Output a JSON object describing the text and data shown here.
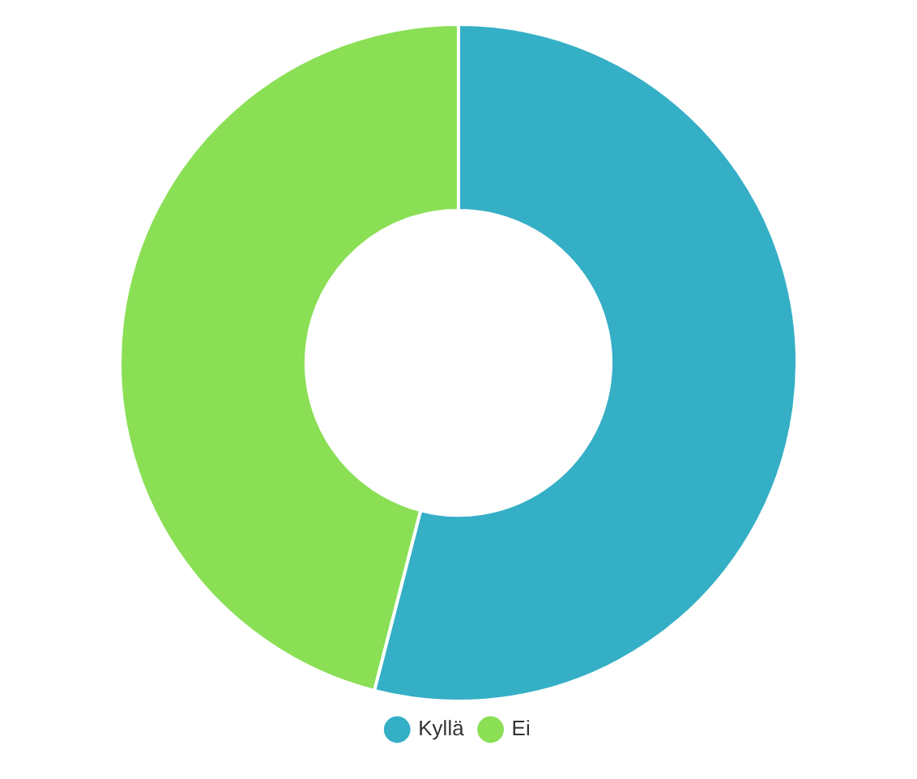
{
  "chart_data": {
    "type": "donut",
    "categories": [
      "Kyllä",
      "Ei"
    ],
    "values": [
      54,
      46
    ],
    "colors": [
      "#35afc6",
      "#8adf55"
    ],
    "legend": "bottom"
  }
}
